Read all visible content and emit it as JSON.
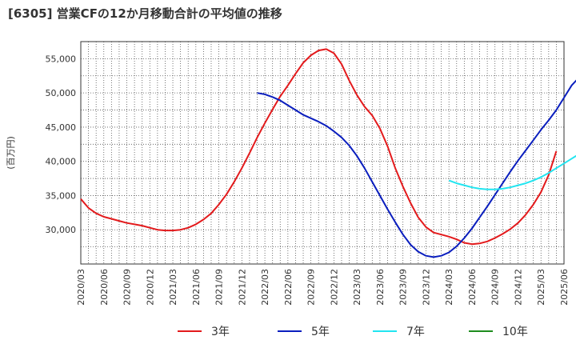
{
  "title": "[6305]  営業CFの12か月移動合計の平均値の推移",
  "chart_data": {
    "type": "line",
    "ylabel": "(百万円)",
    "ylim": [
      25000,
      57500
    ],
    "y_ticks": [
      30000,
      35000,
      40000,
      45000,
      50000,
      55000
    ],
    "y_tick_labels": [
      "30,000",
      "35,000",
      "40,000",
      "45,000",
      "50,000",
      "55,000"
    ],
    "x_tick_labels": [
      "2020/03",
      "2020/06",
      "2020/09",
      "2020/12",
      "2021/03",
      "2021/06",
      "2021/09",
      "2021/12",
      "2022/03",
      "2022/06",
      "2022/09",
      "2022/12",
      "2023/03",
      "2023/06",
      "2023/09",
      "2023/12",
      "2024/03",
      "2024/06",
      "2024/09",
      "2024/12",
      "2025/03",
      "2025/06"
    ],
    "grid": true,
    "legend_position": "bottom",
    "series": [
      {
        "name": "3年",
        "color": "#e31a1c",
        "values": [
          [
            "2020/03",
            34500
          ],
          [
            "2020/04",
            33200
          ],
          [
            "2020/05",
            32400
          ],
          [
            "2020/06",
            31900
          ],
          [
            "2020/07",
            31600
          ],
          [
            "2020/08",
            31300
          ],
          [
            "2020/09",
            31000
          ],
          [
            "2020/10",
            30800
          ],
          [
            "2020/11",
            30600
          ],
          [
            "2020/12",
            30300
          ],
          [
            "2021/01",
            30000
          ],
          [
            "2021/02",
            29900
          ],
          [
            "2021/03",
            29900
          ],
          [
            "2021/04",
            30000
          ],
          [
            "2021/05",
            30300
          ],
          [
            "2021/06",
            30800
          ],
          [
            "2021/07",
            31500
          ],
          [
            "2021/08",
            32400
          ],
          [
            "2021/09",
            33700
          ],
          [
            "2021/10",
            35200
          ],
          [
            "2021/11",
            37000
          ],
          [
            "2021/12",
            39000
          ],
          [
            "2022/01",
            41200
          ],
          [
            "2022/02",
            43500
          ],
          [
            "2022/03",
            45600
          ],
          [
            "2022/04",
            47600
          ],
          [
            "2022/05",
            49500
          ],
          [
            "2022/06",
            51100
          ],
          [
            "2022/07",
            52800
          ],
          [
            "2022/08",
            54400
          ],
          [
            "2022/09",
            55500
          ],
          [
            "2022/10",
            56200
          ],
          [
            "2022/11",
            56400
          ],
          [
            "2022/12",
            55800
          ],
          [
            "2023/01",
            54200
          ],
          [
            "2023/02",
            51800
          ],
          [
            "2023/03",
            49700
          ],
          [
            "2023/04",
            48000
          ],
          [
            "2023/05",
            46700
          ],
          [
            "2023/06",
            44800
          ],
          [
            "2023/07",
            42200
          ],
          [
            "2023/08",
            39000
          ],
          [
            "2023/09",
            36300
          ],
          [
            "2023/10",
            33900
          ],
          [
            "2023/11",
            31800
          ],
          [
            "2023/12",
            30400
          ],
          [
            "2024/01",
            29600
          ],
          [
            "2024/02",
            29300
          ],
          [
            "2024/03",
            29000
          ],
          [
            "2024/04",
            28600
          ],
          [
            "2024/05",
            28100
          ],
          [
            "2024/06",
            27900
          ],
          [
            "2024/07",
            28000
          ],
          [
            "2024/08",
            28300
          ],
          [
            "2024/09",
            28800
          ],
          [
            "2024/10",
            29400
          ],
          [
            "2024/11",
            30100
          ],
          [
            "2024/12",
            31000
          ],
          [
            "2025/01",
            32200
          ],
          [
            "2025/02",
            33700
          ],
          [
            "2025/03",
            35500
          ],
          [
            "2025/04",
            38000
          ],
          [
            "2025/05",
            41500
          ]
        ]
      },
      {
        "name": "5年",
        "color": "#0a1ebe",
        "values": [
          [
            "2022/02",
            50000
          ],
          [
            "2022/03",
            49800
          ],
          [
            "2022/04",
            49400
          ],
          [
            "2022/05",
            48900
          ],
          [
            "2022/06",
            48200
          ],
          [
            "2022/07",
            47500
          ],
          [
            "2022/08",
            46800
          ],
          [
            "2022/09",
            46300
          ],
          [
            "2022/10",
            45800
          ],
          [
            "2022/11",
            45200
          ],
          [
            "2022/12",
            44400
          ],
          [
            "2023/01",
            43500
          ],
          [
            "2023/02",
            42300
          ],
          [
            "2023/03",
            40800
          ],
          [
            "2023/04",
            39000
          ],
          [
            "2023/05",
            37000
          ],
          [
            "2023/06",
            35000
          ],
          [
            "2023/07",
            33000
          ],
          [
            "2023/08",
            31100
          ],
          [
            "2023/09",
            29300
          ],
          [
            "2023/10",
            27800
          ],
          [
            "2023/11",
            26800
          ],
          [
            "2023/12",
            26200
          ],
          [
            "2024/01",
            26000
          ],
          [
            "2024/02",
            26200
          ],
          [
            "2024/03",
            26700
          ],
          [
            "2024/04",
            27600
          ],
          [
            "2024/05",
            28800
          ],
          [
            "2024/06",
            30200
          ],
          [
            "2024/07",
            31800
          ],
          [
            "2024/08",
            33400
          ],
          [
            "2024/09",
            35100
          ],
          [
            "2024/10",
            36800
          ],
          [
            "2024/11",
            38500
          ],
          [
            "2024/12",
            40100
          ],
          [
            "2025/01",
            41600
          ],
          [
            "2025/02",
            43100
          ],
          [
            "2025/03",
            44600
          ],
          [
            "2025/04",
            46000
          ],
          [
            "2025/05",
            47500
          ],
          [
            "2025/06",
            49300
          ],
          [
            "2025/07",
            51100
          ],
          [
            "2025/08",
            52300
          ]
        ]
      },
      {
        "name": "7年",
        "color": "#22e5f0",
        "values": [
          [
            "2024/03",
            37200
          ],
          [
            "2024/04",
            36800
          ],
          [
            "2024/05",
            36500
          ],
          [
            "2024/06",
            36200
          ],
          [
            "2024/07",
            36000
          ],
          [
            "2024/08",
            35900
          ],
          [
            "2024/09",
            35900
          ],
          [
            "2024/10",
            36000
          ],
          [
            "2024/11",
            36200
          ],
          [
            "2024/12",
            36500
          ],
          [
            "2025/01",
            36800
          ],
          [
            "2025/02",
            37200
          ],
          [
            "2025/03",
            37700
          ],
          [
            "2025/04",
            38300
          ],
          [
            "2025/05",
            39000
          ],
          [
            "2025/06",
            39700
          ],
          [
            "2025/07",
            40400
          ],
          [
            "2025/08",
            41100
          ]
        ]
      },
      {
        "name": "10年",
        "color": "#1e8c1e",
        "values": []
      }
    ]
  }
}
